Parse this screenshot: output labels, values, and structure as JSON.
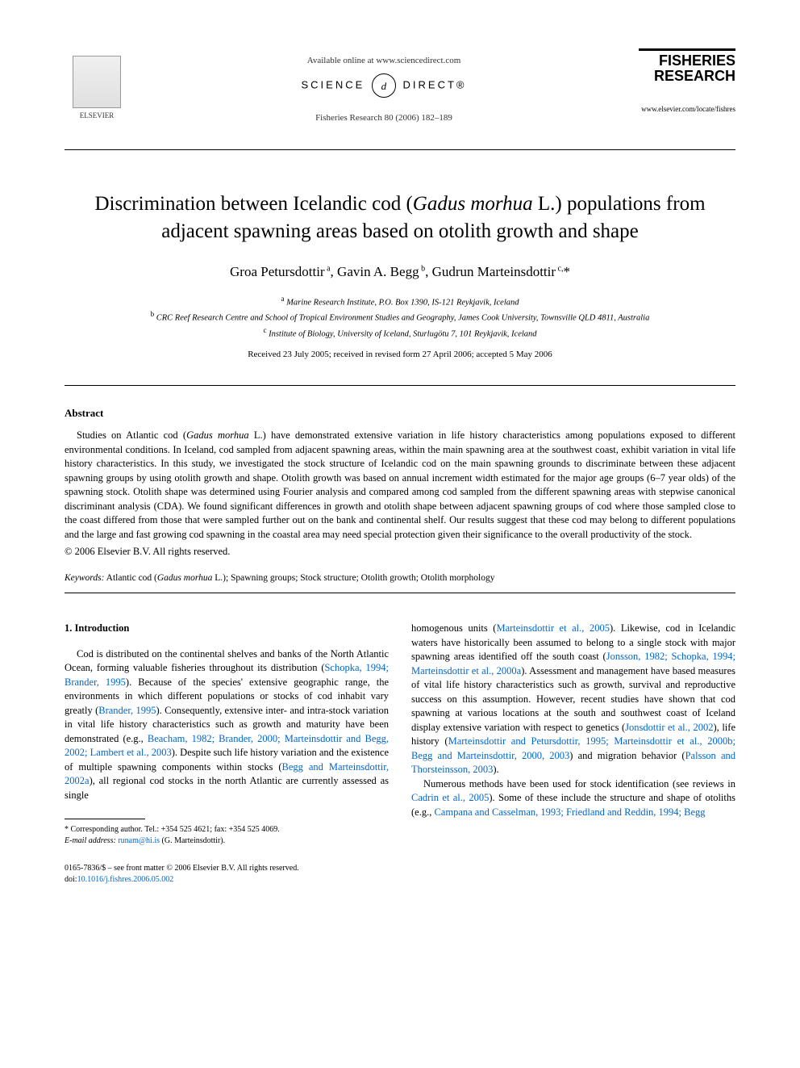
{
  "header": {
    "available_text": "Available online at www.sciencedirect.com",
    "science_direct_left": "SCIENCE",
    "science_direct_d": "d",
    "science_direct_right": "DIRECT®",
    "journal_ref": "Fisheries Research 80 (2006) 182–189",
    "elsevier_label": "ELSEVIER",
    "journal_title_1": "FISHERIES",
    "journal_title_2": "RESEARCH",
    "journal_url": "www.elsevier.com/locate/fishres"
  },
  "title": "Discrimination between Icelandic cod (Gadus morhua L.) populations from adjacent spawning areas based on otolith growth and shape",
  "authors_html": "Groa Petursdottir<sup> a</sup>, Gavin A. Begg<sup> b</sup>, Gudrun Marteinsdottir<sup> c,</sup>*",
  "affiliations": {
    "a": "Marine Research Institute, P.O. Box 1390, IS-121 Reykjavik, Iceland",
    "b": "CRC Reef Research Centre and School of Tropical Environment Studies and Geography, James Cook University, Townsville QLD 4811, Australia",
    "c": "Institute of Biology, University of Iceland, Sturlugötu 7, 101 Reykjavik, Iceland"
  },
  "dates": "Received 23 July 2005; received in revised form 27 April 2006; accepted 5 May 2006",
  "abstract": {
    "heading": "Abstract",
    "text": "Studies on Atlantic cod (Gadus morhua L.) have demonstrated extensive variation in life history characteristics among populations exposed to different environmental conditions. In Iceland, cod sampled from adjacent spawning areas, within the main spawning area at the southwest coast, exhibit variation in vital life history characteristics. In this study, we investigated the stock structure of Icelandic cod on the main spawning grounds to discriminate between these adjacent spawning groups by using otolith growth and shape. Otolith growth was based on annual increment width estimated for the major age groups (6–7 year olds) of the spawning stock. Otolith shape was determined using Fourier analysis and compared among cod sampled from the different spawning areas with stepwise canonical discriminant analysis (CDA). We found significant differences in growth and otolith shape between adjacent spawning groups of cod where those sampled close to the coast differed from those that were sampled further out on the bank and continental shelf. Our results suggest that these cod may belong to different populations and the large and fast growing cod spawning in the coastal area may need special protection given their significance to the overall productivity of the stock.",
    "copyright": "© 2006 Elsevier B.V. All rights reserved."
  },
  "keywords": {
    "label": "Keywords:",
    "text": "Atlantic cod (Gadus morhua L.); Spawning groups; Stock structure; Otolith growth; Otolith morphology"
  },
  "intro": {
    "heading": "1.  Introduction",
    "col1": "Cod is distributed on the continental shelves and banks of the North Atlantic Ocean, forming valuable fisheries throughout its distribution (Schopka, 1994; Brander, 1995). Because of the species' extensive geographic range, the environments in which different populations or stocks of cod inhabit vary greatly (Brander, 1995). Consequently, extensive inter- and intra-stock variation in vital life history characteristics such as growth and maturity have been demonstrated (e.g., Beacham, 1982; Brander, 2000; Marteinsdottir and Begg, 2002; Lambert et al., 2003). Despite such life history variation and the existence of multiple spawning components within stocks (Begg and Marteinsdottir, 2002a), all regional cod stocks in the north Atlantic are currently assessed as single",
    "col2_p1": "homogenous units (Marteinsdottir et al., 2005). Likewise, cod in Icelandic waters have historically been assumed to belong to a single stock with major spawning areas identified off the south coast (Jonsson, 1982; Schopka, 1994; Marteinsdottir et al., 2000a). Assessment and management have based measures of vital life history characteristics such as growth, survival and reproductive success on this assumption. However, recent studies have shown that cod spawning at various locations at the south and southwest coast of Iceland display extensive variation with respect to genetics (Jonsdottir et al., 2002), life history (Marteinsdottir and Petursdottir, 1995; Marteinsdottir et al., 2000b; Begg and Marteinsdottir, 2000, 2003) and migration behavior (Palsson and Thorsteinsson, 2003).",
    "col2_p2": "Numerous methods have been used for stock identification (see reviews in Cadrin et al., 2005). Some of these include the structure and shape of otoliths (e.g., Campana and Casselman, 1993; Friedland and Reddin, 1994; Begg"
  },
  "footnote": {
    "corr": "* Corresponding author. Tel.: +354 525 4621; fax: +354 525 4069.",
    "email_label": "E-mail address:",
    "email": "runam@hi.is",
    "email_name": "(G. Marteinsdottir)."
  },
  "footer": {
    "line1": "0165-7836/$ – see front matter © 2006 Elsevier B.V. All rights reserved.",
    "line2": "doi:10.1016/j.fishres.2006.05.002"
  },
  "colors": {
    "link": "#0066cc",
    "text": "#000000",
    "bg": "#ffffff"
  },
  "typography": {
    "title_fontsize": 25,
    "body_fontsize": 12.5,
    "author_fontsize": 17,
    "affil_fontsize": 10.5,
    "footnote_fontsize": 10
  }
}
